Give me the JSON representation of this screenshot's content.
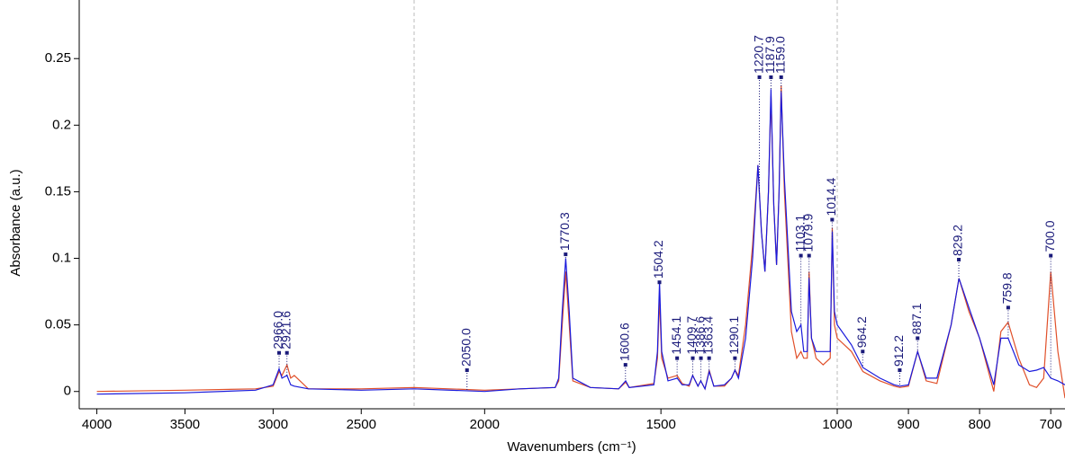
{
  "chart_data": {
    "type": "line",
    "xlabel": "Wavenumbers (cm⁻¹)",
    "ylabel": "Absorbance (a.u.)",
    "xlim": [
      4100,
      680
    ],
    "ylim": [
      -0.013,
      0.294
    ],
    "xticks": [
      4000,
      3500,
      3000,
      2500,
      2000,
      1500,
      1000,
      900,
      800,
      700
    ],
    "yticks": [
      0,
      0.05,
      0.1,
      0.15,
      0.2,
      0.25
    ],
    "breaks": [
      2200,
      1000
    ],
    "x": [
      4000,
      3500,
      3100,
      3000,
      2966,
      2950,
      2921,
      2900,
      2880,
      2800,
      2500,
      2200,
      2000,
      1900,
      1800,
      1790,
      1780,
      1770,
      1760,
      1750,
      1700,
      1620,
      1600,
      1590,
      1520,
      1510,
      1504,
      1498,
      1480,
      1454,
      1440,
      1420,
      1410,
      1395,
      1387,
      1375,
      1363,
      1350,
      1320,
      1300,
      1290,
      1280,
      1260,
      1240,
      1225,
      1215,
      1205,
      1195,
      1188,
      1180,
      1172,
      1165,
      1159,
      1150,
      1130,
      1115,
      1103,
      1095,
      1085,
      1080,
      1073,
      1060,
      1040,
      1020,
      1014,
      1008,
      1000,
      980,
      964,
      940,
      920,
      912,
      900,
      887,
      875,
      860,
      840,
      829,
      815,
      800,
      780,
      770,
      760,
      745,
      730,
      720,
      710,
      700,
      690,
      680
    ],
    "series": [
      {
        "color": "#e0502a",
        "values": [
          0.0,
          0.001,
          0.002,
          0.004,
          0.015,
          0.012,
          0.02,
          0.01,
          0.012,
          0.002,
          0.002,
          0.003,
          0.001,
          0.002,
          0.003,
          0.008,
          0.05,
          0.09,
          0.05,
          0.008,
          0.003,
          0.002,
          0.007,
          0.003,
          0.006,
          0.025,
          0.07,
          0.025,
          0.01,
          0.012,
          0.006,
          0.004,
          0.012,
          0.004,
          0.008,
          0.002,
          0.016,
          0.004,
          0.004,
          0.01,
          0.016,
          0.012,
          0.05,
          0.11,
          0.17,
          0.12,
          0.09,
          0.15,
          0.222,
          0.14,
          0.095,
          0.15,
          0.23,
          0.15,
          0.045,
          0.025,
          0.03,
          0.025,
          0.025,
          0.09,
          0.04,
          0.025,
          0.02,
          0.025,
          0.123,
          0.05,
          0.04,
          0.03,
          0.015,
          0.008,
          0.004,
          0.003,
          0.004,
          0.03,
          0.008,
          0.006,
          0.05,
          0.085,
          0.06,
          0.04,
          0.0,
          0.045,
          0.052,
          0.025,
          0.005,
          0.003,
          0.01,
          0.09,
          0.03,
          -0.005
        ]
      },
      {
        "color": "#1a1adc",
        "values": [
          -0.002,
          -0.001,
          0.001,
          0.005,
          0.017,
          0.01,
          0.012,
          0.005,
          0.004,
          0.002,
          0.001,
          0.002,
          0.0,
          0.002,
          0.003,
          0.01,
          0.06,
          0.1,
          0.06,
          0.01,
          0.003,
          0.002,
          0.008,
          0.003,
          0.005,
          0.03,
          0.082,
          0.03,
          0.008,
          0.01,
          0.005,
          0.005,
          0.012,
          0.004,
          0.008,
          0.002,
          0.015,
          0.004,
          0.005,
          0.01,
          0.016,
          0.01,
          0.04,
          0.1,
          0.17,
          0.12,
          0.09,
          0.15,
          0.227,
          0.14,
          0.095,
          0.15,
          0.225,
          0.16,
          0.06,
          0.045,
          0.05,
          0.03,
          0.03,
          0.085,
          0.04,
          0.03,
          0.03,
          0.03,
          0.12,
          0.06,
          0.05,
          0.035,
          0.018,
          0.01,
          0.005,
          0.004,
          0.005,
          0.03,
          0.01,
          0.01,
          0.05,
          0.085,
          0.063,
          0.04,
          0.005,
          0.04,
          0.04,
          0.02,
          0.015,
          0.016,
          0.018,
          0.01,
          0.008,
          0.005
        ]
      }
    ],
    "peaks": [
      {
        "x": 2966.0,
        "label": "2966.0",
        "y": 0.029
      },
      {
        "x": 2921.6,
        "label": "2921.6",
        "y": 0.029
      },
      {
        "x": 2050.0,
        "label": "2050.0",
        "y": 0.016
      },
      {
        "x": 1770.3,
        "label": "1770.3",
        "y": 0.103
      },
      {
        "x": 1600.6,
        "label": "1600.6",
        "y": 0.02
      },
      {
        "x": 1504.2,
        "label": "1504.2",
        "y": 0.082
      },
      {
        "x": 1454.1,
        "label": "1454.1",
        "y": 0.025
      },
      {
        "x": 1409.7,
        "label": "1409.7",
        "y": 0.025
      },
      {
        "x": 1386.6,
        "label": "1386.6",
        "y": 0.025
      },
      {
        "x": 1363.4,
        "label": "1363.4",
        "y": 0.025
      },
      {
        "x": 1290.1,
        "label": "1290.1",
        "y": 0.025
      },
      {
        "x": 1220.7,
        "label": "1220.7",
        "y": 0.236
      },
      {
        "x": 1187.9,
        "label": "1187.9",
        "y": 0.236
      },
      {
        "x": 1159.0,
        "label": "1159.0",
        "y": 0.236
      },
      {
        "x": 1103.1,
        "label": "1103.1",
        "y": 0.102
      },
      {
        "x": 1079.9,
        "label": "1079.9",
        "y": 0.102
      },
      {
        "x": 1014.4,
        "label": "1014.4",
        "y": 0.129
      },
      {
        "x": 964.2,
        "label": "964.2",
        "y": 0.03
      },
      {
        "x": 912.2,
        "label": "912.2",
        "y": 0.016
      },
      {
        "x": 887.1,
        "label": "887.1",
        "y": 0.04
      },
      {
        "x": 829.2,
        "label": "829.2",
        "y": 0.099
      },
      {
        "x": 759.8,
        "label": "759.8",
        "y": 0.063
      },
      {
        "x": 700.0,
        "label": "700.0",
        "y": 0.102
      }
    ]
  }
}
